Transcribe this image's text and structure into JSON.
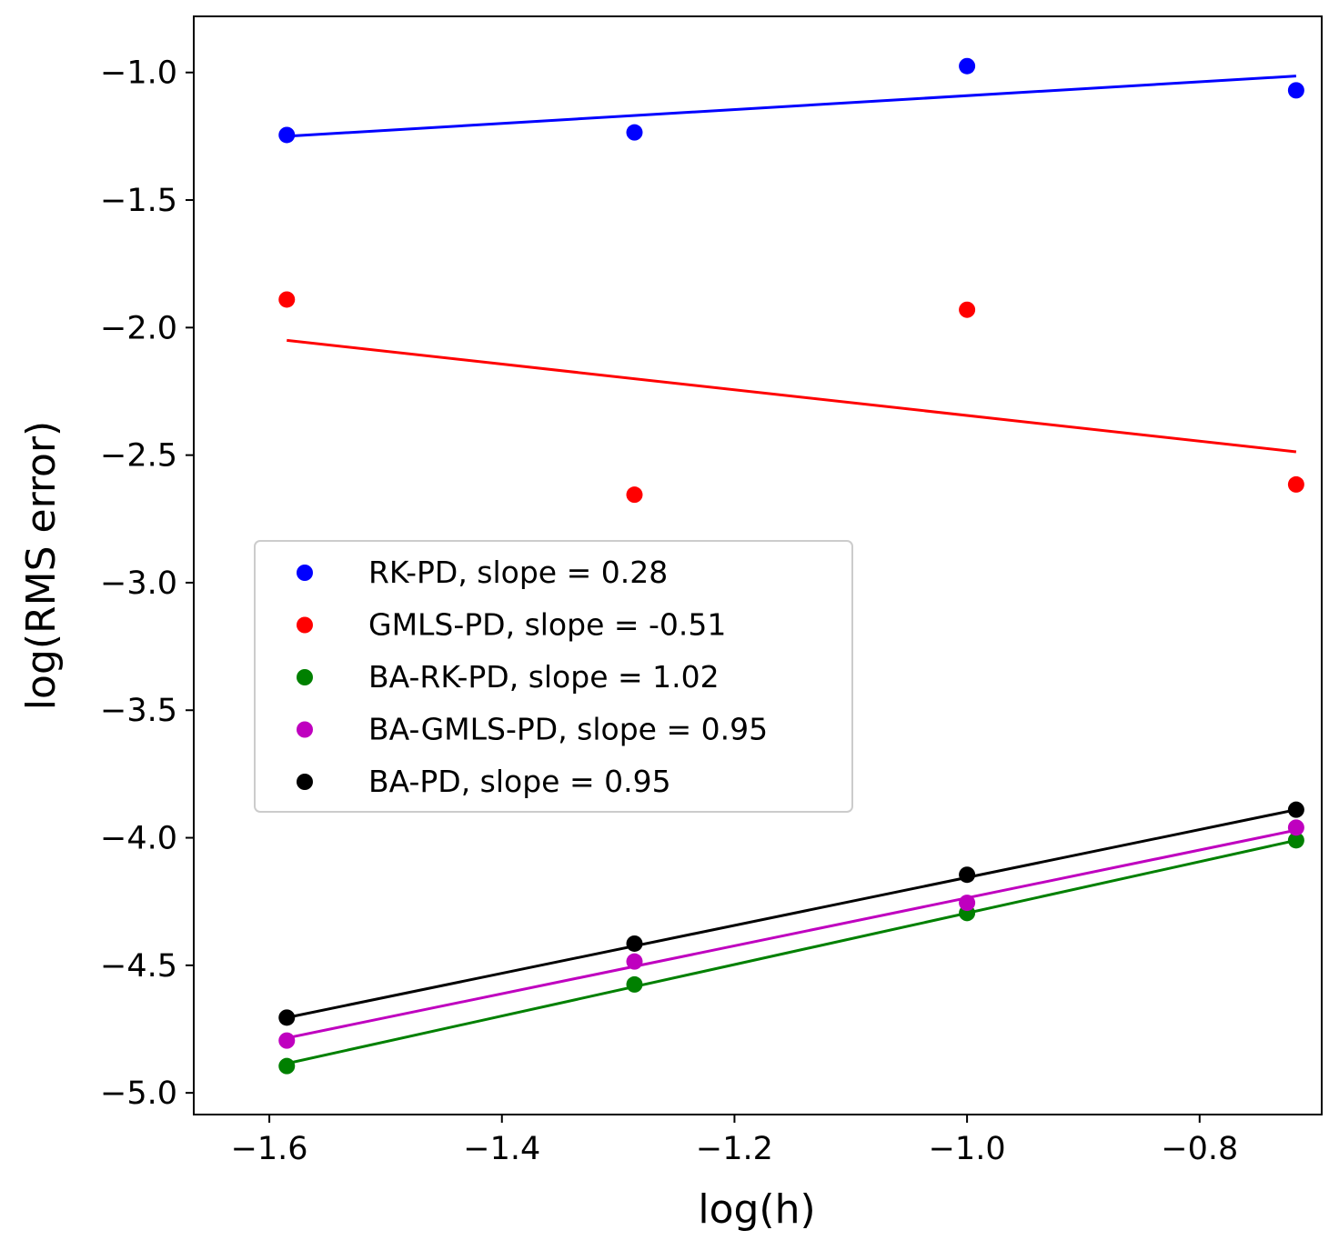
{
  "chart_data": {
    "type": "scatter",
    "title": "",
    "xlabel": "log(h)",
    "ylabel": "log(RMS error)",
    "xlim": [
      -1.665,
      -0.695
    ],
    "ylim": [
      -5.085,
      -0.78
    ],
    "xticks": [
      -1.6,
      -1.4,
      -1.2,
      -1.0,
      -0.8
    ],
    "xtick_labels": [
      "−1.6",
      "−1.4",
      "−1.2",
      "−1.0",
      "−0.8"
    ],
    "yticks": [
      -1.0,
      -1.5,
      -2.0,
      -2.5,
      -3.0,
      -3.5,
      -4.0,
      -4.5,
      -5.0
    ],
    "ytick_labels": [
      "−1.0",
      "−1.5",
      "−2.0",
      "−2.5",
      "−3.0",
      "−3.5",
      "−4.0",
      "−4.5",
      "−5.0"
    ],
    "grid": false,
    "legend_position": "center-left",
    "x": [
      -1.585,
      -1.286,
      -1.0,
      -0.717
    ],
    "series": [
      {
        "name": "RK-PD, slope = 0.28",
        "color": "#0000ff",
        "y": [
          -1.245,
          -1.235,
          -0.975,
          -1.07
        ],
        "fit": [
          -1.25,
          -1.014
        ]
      },
      {
        "name": "GMLS-PD, slope = -0.51",
        "color": "#ff0000",
        "y": [
          -1.89,
          -2.655,
          -1.93,
          -2.615
        ],
        "fit": [
          -2.05,
          -2.487
        ]
      },
      {
        "name": "BA-RK-PD, slope = 1.02",
        "color": "#008000",
        "y": [
          -4.895,
          -4.575,
          -4.295,
          -4.01
        ],
        "fit": [
          -4.885,
          -4.01
        ]
      },
      {
        "name": "BA-GMLS-PD, slope = 0.95",
        "color": "#bf00bf",
        "y": [
          -4.795,
          -4.485,
          -4.255,
          -3.96
        ],
        "fit": [
          -4.785,
          -3.97
        ]
      },
      {
        "name": "BA-PD, slope = 0.95",
        "color": "#000000",
        "y": [
          -4.705,
          -4.415,
          -4.145,
          -3.89
        ],
        "fit": [
          -4.705,
          -3.89
        ]
      }
    ]
  }
}
